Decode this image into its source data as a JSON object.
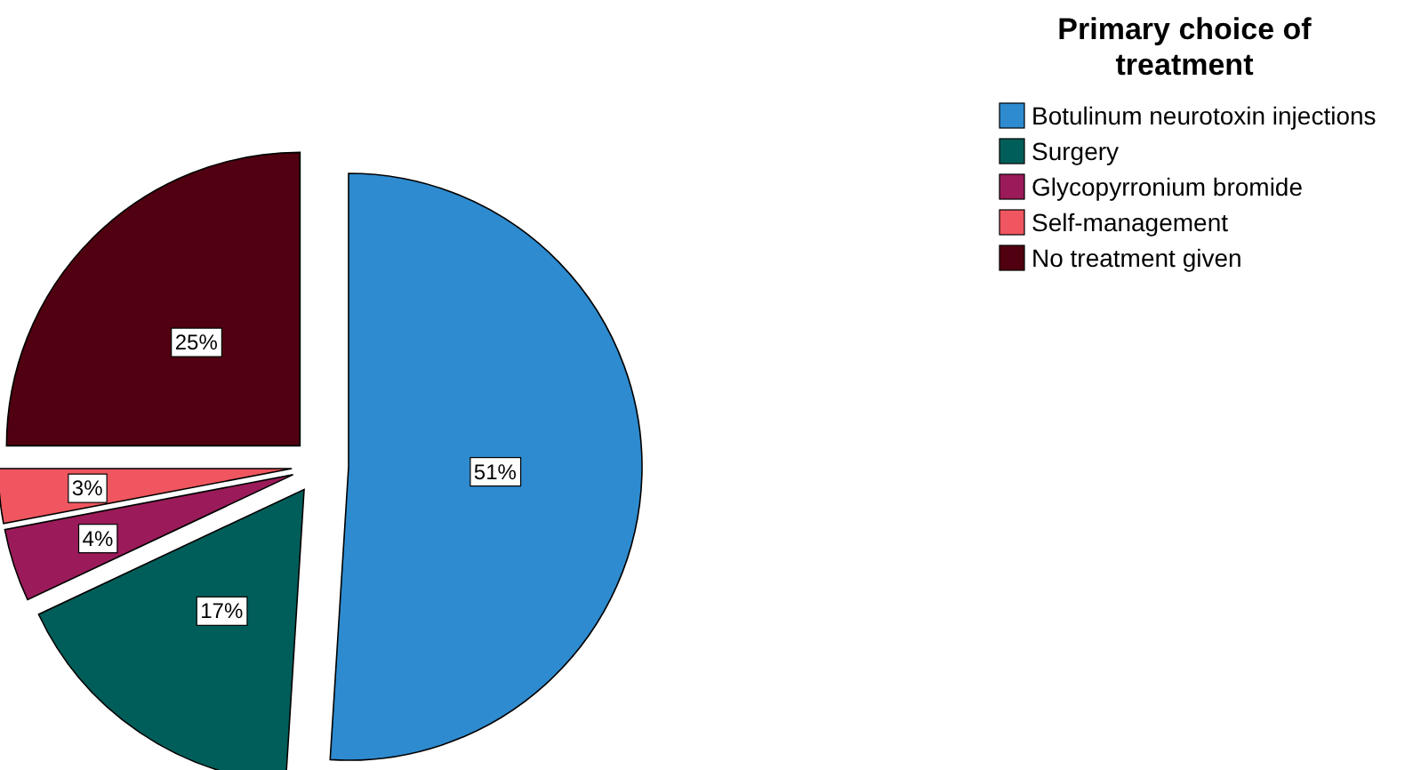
{
  "chart_data": {
    "type": "pie",
    "legend_title": "Primary choice of treatment",
    "categories": [
      "Botulinum neurotoxin injections",
      "Surgery",
      "Glycopyrronium bromide",
      "Self-management",
      "No treatment given"
    ],
    "values": [
      51,
      17,
      4,
      3,
      25
    ],
    "colors": [
      "#2e8bcf",
      "#005e5a",
      "#9b1b5a",
      "#f0565f",
      "#500010"
    ],
    "value_labels": [
      "51%",
      "17%",
      "4%",
      "3%",
      "25%"
    ],
    "legend": "right"
  }
}
